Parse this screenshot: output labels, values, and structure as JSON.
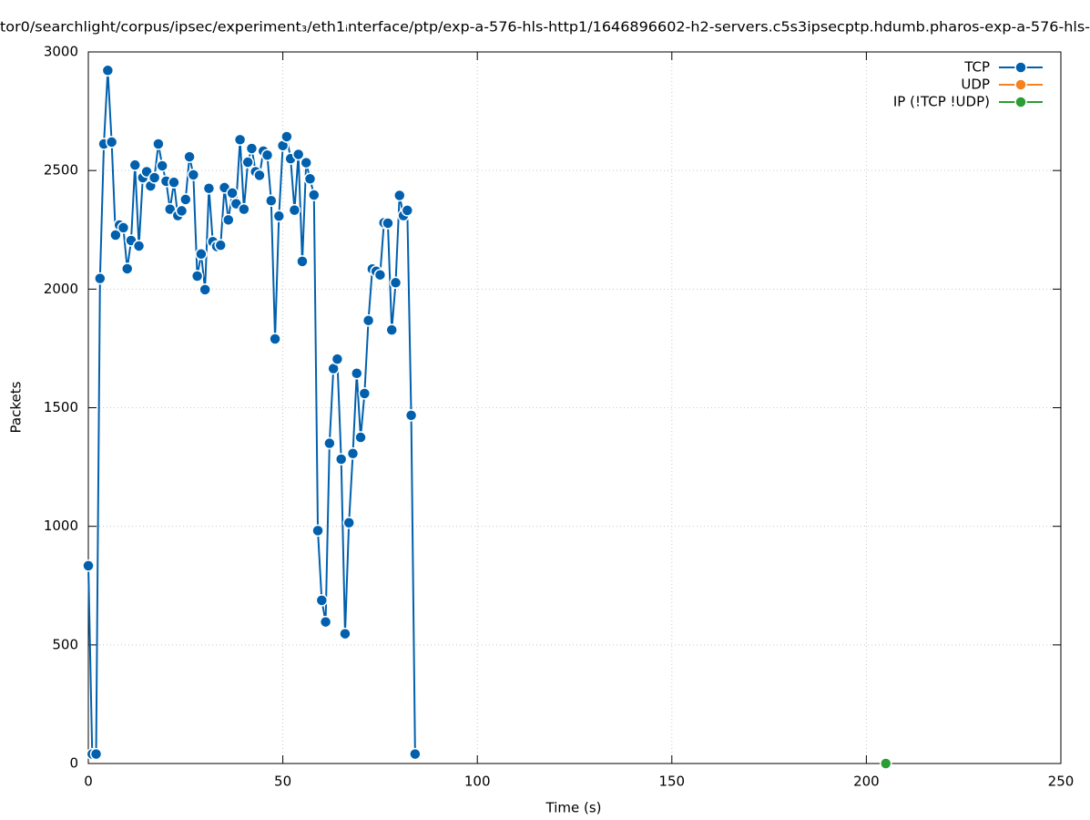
{
  "chart_data": {
    "type": "line",
    "title": "tor0/searchlight/corpus/ipsec/experiment₃/eth1ᵢnterface/ptp/exp-a-576-hls-http1/1646896602-h2-servers.c5s3ipsecptp.hdumb.pharos-exp-a-576-hls-",
    "xlabel": "Time (s)",
    "ylabel": "Packets",
    "xlim": [
      0,
      250
    ],
    "xticks": [
      0,
      50,
      100,
      150,
      200,
      250
    ],
    "ylim": [
      0,
      3000
    ],
    "yticks": [
      0,
      500,
      1000,
      1500,
      2000,
      2500,
      3000
    ],
    "grid": true,
    "legend": "top-right",
    "series": [
      {
        "name": "TCP",
        "color": "#0060ad",
        "x": [
          0,
          1,
          2,
          3,
          4,
          5,
          6,
          7,
          8,
          9,
          10,
          11,
          12,
          13,
          14,
          15,
          16,
          17,
          18,
          19,
          20,
          21,
          22,
          23,
          24,
          25,
          26,
          27,
          28,
          29,
          30,
          31,
          32,
          33,
          34,
          35,
          36,
          37,
          38,
          39,
          40,
          41,
          42,
          43,
          44,
          45,
          46,
          47,
          48,
          49,
          50,
          51,
          52,
          53,
          54,
          55,
          56,
          57,
          58,
          59,
          60,
          61,
          62,
          63,
          64,
          65,
          66,
          67,
          68,
          69,
          70,
          71,
          72,
          73,
          74,
          75,
          76,
          77,
          78,
          79,
          80,
          81,
          82,
          83,
          84
        ],
        "values": [
          834,
          40,
          40,
          2045,
          2612,
          2922,
          2620,
          2228,
          2270,
          2259,
          2086,
          2205,
          2523,
          2182,
          2470,
          2495,
          2435,
          2470,
          2612,
          2520,
          2455,
          2337,
          2450,
          2310,
          2330,
          2378,
          2558,
          2482,
          2055,
          2148,
          1998,
          2425,
          2200,
          2180,
          2185,
          2428,
          2292,
          2405,
          2360,
          2630,
          2337,
          2535,
          2593,
          2495,
          2480,
          2582,
          2565,
          2373,
          1790,
          2308,
          2605,
          2643,
          2550,
          2333,
          2568,
          2117,
          2533,
          2465,
          2397,
          982,
          688,
          597,
          1350,
          1665,
          1705,
          1283,
          547,
          1015,
          1307,
          1645,
          1375,
          1560,
          1868,
          2085,
          2075,
          2060,
          2280,
          2278,
          1828,
          2027,
          2395,
          2310,
          2332,
          1468,
          40
        ]
      },
      {
        "name": "UDP",
        "color": "#f5821f",
        "x": [],
        "values": []
      },
      {
        "name": "IP (!TCP  !UDP)",
        "color": "#2a9d34",
        "x": [
          205
        ],
        "values": [
          0
        ]
      }
    ]
  }
}
